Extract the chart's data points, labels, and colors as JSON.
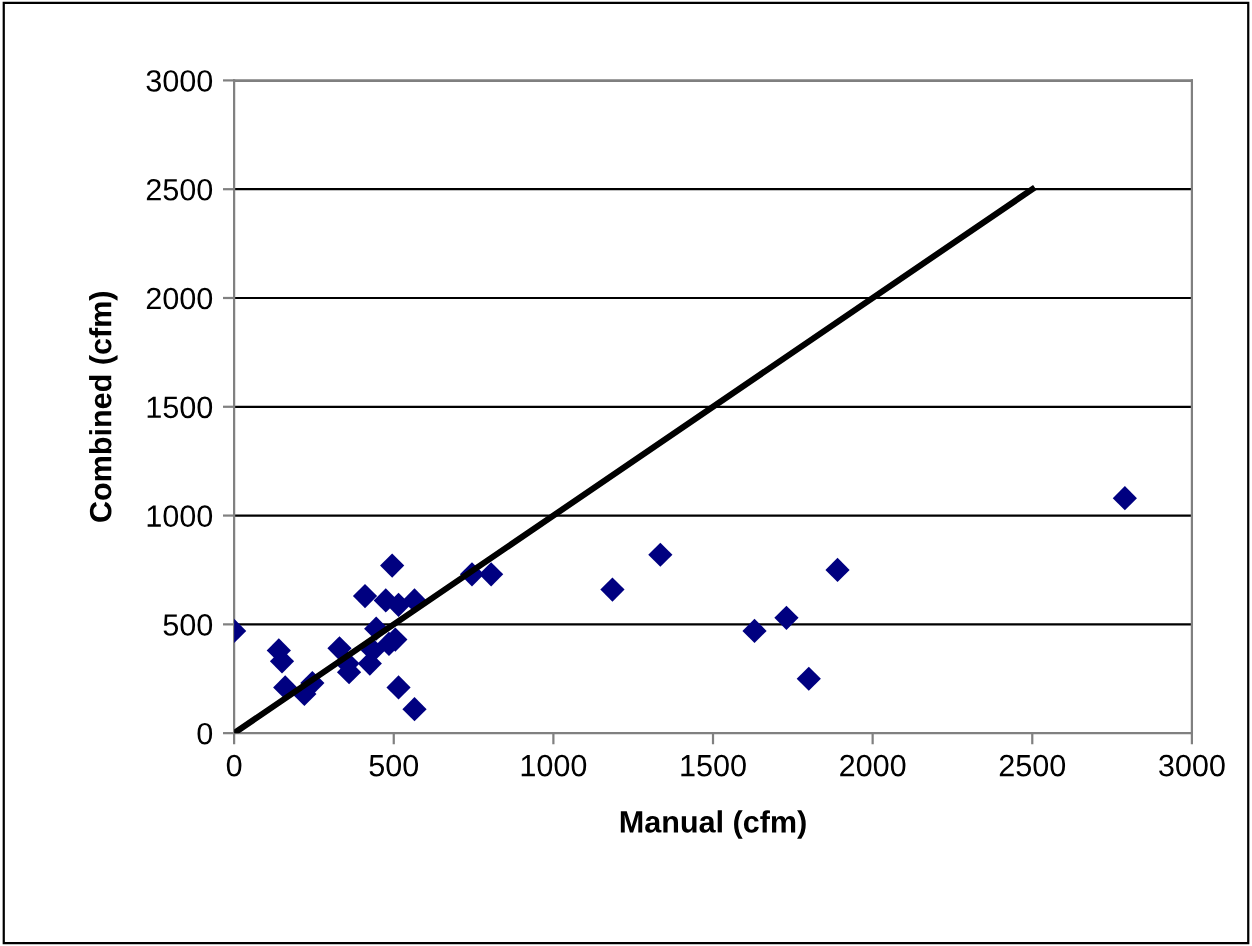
{
  "chart_data": {
    "type": "scatter",
    "xlabel": "Manual (cfm)",
    "ylabel": "Combined (cfm)",
    "xlim": [
      0,
      3000
    ],
    "ylim": [
      0,
      3000
    ],
    "xticks": [
      0,
      500,
      1000,
      1500,
      2000,
      2500,
      3000
    ],
    "yticks": [
      0,
      500,
      1000,
      1500,
      2000,
      2500,
      3000
    ],
    "grid": "y",
    "marker": "diamond",
    "legend": false,
    "series": [
      {
        "color": "#000080",
        "x": [
          0,
          140,
          150,
          160,
          220,
          245,
          330,
          360,
          355,
          410,
          425,
          435,
          445,
          475,
          485,
          495,
          505,
          515,
          515,
          565,
          565,
          745,
          805,
          1185,
          1335,
          1630,
          1730,
          1800,
          1890,
          2790
        ],
        "values": [
          470,
          380,
          330,
          210,
          180,
          230,
          390,
          280,
          320,
          630,
          320,
          380,
          480,
          610,
          410,
          770,
          430,
          590,
          210,
          610,
          110,
          730,
          730,
          660,
          820,
          470,
          530,
          250,
          750,
          1080
        ]
      },
      {
        "type": "line",
        "color": "#000000",
        "x": [
          0,
          2500
        ],
        "values": [
          0,
          2500
        ],
        "marker": "none"
      }
    ]
  }
}
